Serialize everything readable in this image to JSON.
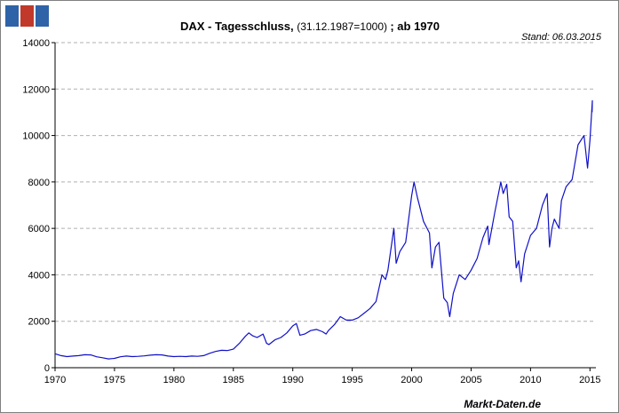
{
  "chart_data": {
    "type": "line",
    "title_bold": "DAX - Tagesschluss,",
    "title_normal": " (31.12.1987=1000) ",
    "title_tail": "; ab 1970",
    "stand": "Stand: 06.03.2015",
    "footer": "Markt-Daten.de",
    "xlabel": "",
    "ylabel": "",
    "xlim": [
      1970,
      2015.5
    ],
    "ylim": [
      0,
      14000
    ],
    "x_ticks": [
      1970,
      1975,
      1980,
      1985,
      1990,
      1995,
      2000,
      2005,
      2010,
      2015
    ],
    "y_ticks": [
      0,
      2000,
      4000,
      6000,
      8000,
      10000,
      12000,
      14000
    ],
    "grid": true,
    "line_color": "#1010c8",
    "series": [
      {
        "values": [
          [
            1970.0,
            600
          ],
          [
            1970.5,
            520
          ],
          [
            1971.0,
            480
          ],
          [
            1971.5,
            500
          ],
          [
            1972.0,
            520
          ],
          [
            1972.5,
            560
          ],
          [
            1973.0,
            550
          ],
          [
            1973.5,
            470
          ],
          [
            1974.0,
            430
          ],
          [
            1974.5,
            380
          ],
          [
            1975.0,
            400
          ],
          [
            1975.5,
            470
          ],
          [
            1976.0,
            500
          ],
          [
            1976.5,
            480
          ],
          [
            1977.0,
            490
          ],
          [
            1977.5,
            510
          ],
          [
            1978.0,
            540
          ],
          [
            1978.5,
            560
          ],
          [
            1979.0,
            550
          ],
          [
            1979.5,
            500
          ],
          [
            1980.0,
            480
          ],
          [
            1980.5,
            490
          ],
          [
            1981.0,
            480
          ],
          [
            1981.5,
            500
          ],
          [
            1982.0,
            490
          ],
          [
            1982.5,
            520
          ],
          [
            1983.0,
            620
          ],
          [
            1983.5,
            700
          ],
          [
            1984.0,
            750
          ],
          [
            1984.5,
            740
          ],
          [
            1985.0,
            800
          ],
          [
            1985.5,
            1050
          ],
          [
            1986.0,
            1350
          ],
          [
            1986.3,
            1500
          ],
          [
            1986.6,
            1380
          ],
          [
            1987.0,
            1300
          ],
          [
            1987.5,
            1450
          ],
          [
            1987.8,
            1050
          ],
          [
            1988.0,
            1000
          ],
          [
            1988.5,
            1200
          ],
          [
            1989.0,
            1300
          ],
          [
            1989.5,
            1500
          ],
          [
            1990.0,
            1800
          ],
          [
            1990.3,
            1900
          ],
          [
            1990.6,
            1400
          ],
          [
            1991.0,
            1450
          ],
          [
            1991.5,
            1600
          ],
          [
            1992.0,
            1650
          ],
          [
            1992.5,
            1550
          ],
          [
            1992.8,
            1450
          ],
          [
            1993.0,
            1600
          ],
          [
            1993.5,
            1850
          ],
          [
            1994.0,
            2200
          ],
          [
            1994.5,
            2050
          ],
          [
            1995.0,
            2050
          ],
          [
            1995.5,
            2150
          ],
          [
            1996.0,
            2350
          ],
          [
            1996.5,
            2550
          ],
          [
            1997.0,
            2850
          ],
          [
            1997.5,
            4000
          ],
          [
            1997.8,
            3800
          ],
          [
            1998.0,
            4200
          ],
          [
            1998.5,
            6000
          ],
          [
            1998.7,
            4500
          ],
          [
            1999.0,
            5000
          ],
          [
            1999.5,
            5400
          ],
          [
            2000.0,
            7400
          ],
          [
            2000.2,
            8000
          ],
          [
            2000.5,
            7300
          ],
          [
            2001.0,
            6300
          ],
          [
            2001.5,
            5800
          ],
          [
            2001.7,
            4300
          ],
          [
            2002.0,
            5200
          ],
          [
            2002.3,
            5400
          ],
          [
            2002.7,
            3000
          ],
          [
            2003.0,
            2800
          ],
          [
            2003.2,
            2200
          ],
          [
            2003.5,
            3200
          ],
          [
            2004.0,
            4000
          ],
          [
            2004.5,
            3800
          ],
          [
            2005.0,
            4200
          ],
          [
            2005.5,
            4700
          ],
          [
            2006.0,
            5600
          ],
          [
            2006.4,
            6100
          ],
          [
            2006.5,
            5300
          ],
          [
            2007.0,
            6700
          ],
          [
            2007.5,
            8000
          ],
          [
            2007.7,
            7500
          ],
          [
            2008.0,
            7900
          ],
          [
            2008.2,
            6500
          ],
          [
            2008.5,
            6300
          ],
          [
            2008.8,
            4300
          ],
          [
            2009.0,
            4600
          ],
          [
            2009.2,
            3700
          ],
          [
            2009.5,
            4900
          ],
          [
            2010.0,
            5700
          ],
          [
            2010.5,
            6000
          ],
          [
            2011.0,
            7000
          ],
          [
            2011.4,
            7500
          ],
          [
            2011.6,
            5200
          ],
          [
            2011.8,
            6000
          ],
          [
            2012.0,
            6400
          ],
          [
            2012.4,
            6000
          ],
          [
            2012.6,
            7200
          ],
          [
            2013.0,
            7800
          ],
          [
            2013.5,
            8100
          ],
          [
            2014.0,
            9600
          ],
          [
            2014.5,
            10000
          ],
          [
            2014.8,
            8600
          ],
          [
            2015.0,
            9800
          ],
          [
            2015.2,
            11500
          ],
          [
            2015.18,
            11000
          ]
        ]
      }
    ]
  }
}
